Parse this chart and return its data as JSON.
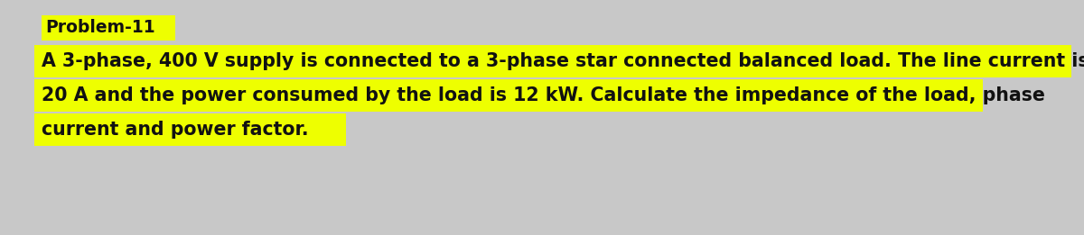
{
  "background_color": "#c8c8c8",
  "title_text": "Problem-11",
  "title_highlight_color": "#eeff00",
  "body_lines": [
    "A 3-phase, 400 V supply is connected to a 3-phase star connected balanced load. The line current is",
    "20 A and the power consumed by the load is 12 kW. Calculate the impedance of the load, phase",
    "current and power factor."
  ],
  "body_highlight_color": "#eeff00",
  "text_color": "#111111",
  "title_fontsize": 13.5,
  "body_fontsize": 14.8
}
